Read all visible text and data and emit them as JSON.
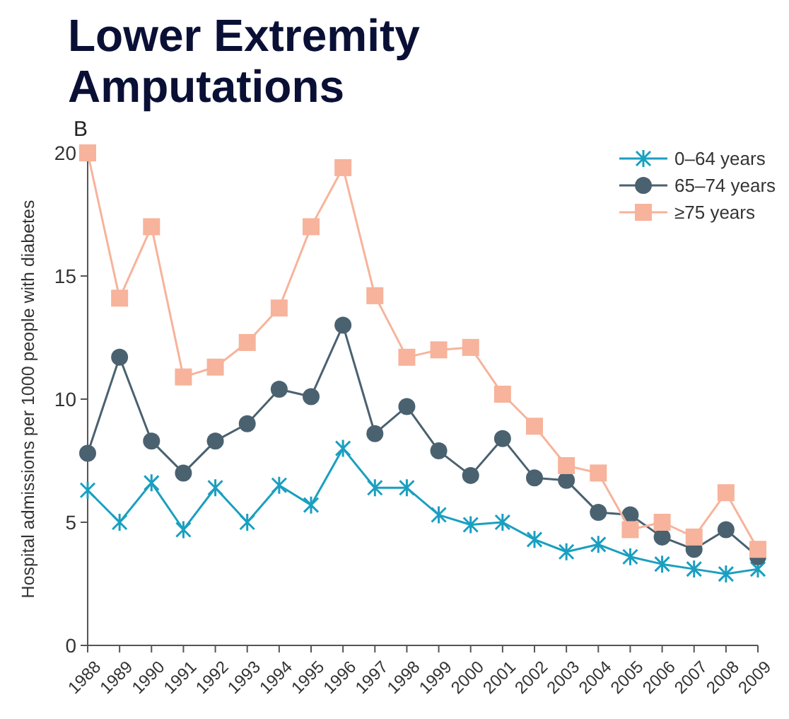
{
  "chart_data": {
    "type": "line",
    "title": "Lower Extremity Amputations",
    "annotations": [
      "B"
    ],
    "ylabel": "Hospital admissions per 1000 people with diabetes",
    "x": [
      1988,
      1989,
      1990,
      1991,
      1992,
      1993,
      1994,
      1995,
      1996,
      1997,
      1998,
      1999,
      2000,
      2001,
      2002,
      2003,
      2004,
      2005,
      2006,
      2007,
      2008,
      2009
    ],
    "xlim": [
      1988,
      2009
    ],
    "xticks": [
      1988,
      1989,
      1990,
      1991,
      1992,
      1993,
      1994,
      1995,
      1996,
      1997,
      1998,
      1999,
      2000,
      2001,
      2002,
      2003,
      2004,
      2005,
      2006,
      2007,
      2008,
      2009
    ],
    "ylim": [
      0,
      20
    ],
    "yticks": [
      0,
      5,
      10,
      15,
      20
    ],
    "grid": false,
    "legend": "top right",
    "series": [
      {
        "name": "0–64 years",
        "color": "#1a9fc0",
        "marker": "cross",
        "values": [
          6.3,
          5.0,
          6.6,
          4.7,
          6.4,
          5.0,
          6.5,
          5.7,
          8.0,
          6.4,
          6.4,
          5.3,
          4.9,
          5.0,
          4.3,
          3.8,
          4.1,
          3.6,
          3.3,
          3.1,
          2.9,
          3.1
        ]
      },
      {
        "name": "65–74 years",
        "color": "#4a6170",
        "marker": "circle",
        "values": [
          7.8,
          11.7,
          8.3,
          7.0,
          8.3,
          9.0,
          10.4,
          10.1,
          13.0,
          8.6,
          9.7,
          7.9,
          6.9,
          8.4,
          6.8,
          6.7,
          5.4,
          5.3,
          4.4,
          3.9,
          4.7,
          3.6
        ]
      },
      {
        "name": "≥75 years",
        "color": "#f7b39b",
        "marker": "square",
        "values": [
          20.0,
          14.1,
          17.0,
          10.9,
          11.3,
          12.3,
          13.7,
          17.0,
          19.4,
          14.2,
          11.7,
          12.0,
          12.1,
          10.2,
          8.9,
          7.3,
          7.0,
          4.7,
          5.0,
          4.4,
          6.2,
          3.9
        ]
      }
    ]
  }
}
